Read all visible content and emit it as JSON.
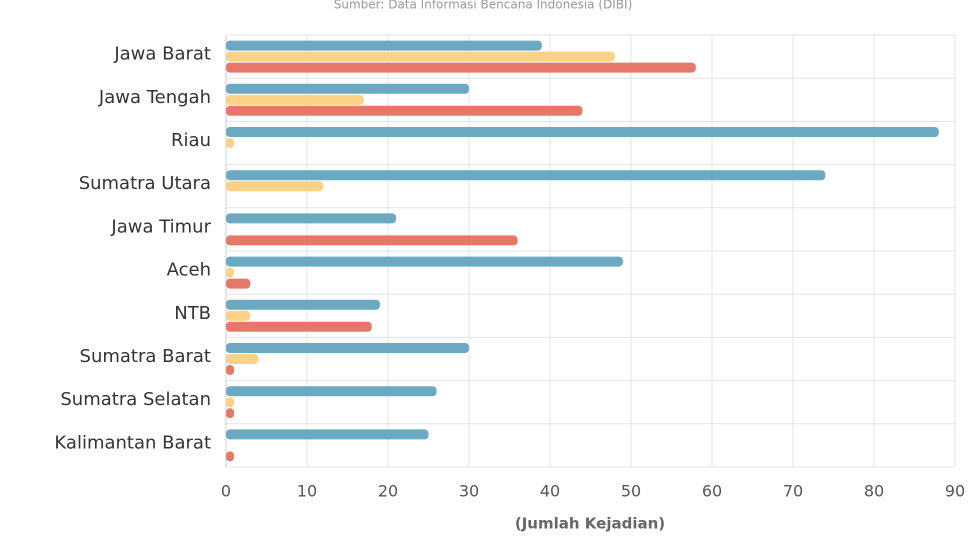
{
  "chart_data": {
    "type": "hbar",
    "subtitle": "Sumber: Data Informasi Bencana Indonesia (DIBI)",
    "x_label": "(Jumlah Kejadian)",
    "categories": [
      "Jawa Barat",
      "Jawa Tengah",
      "Riau",
      "Sumatra Utara",
      "Jawa Timur",
      "Aceh",
      "NTB",
      "Sumatra Barat",
      "Sumatra Selatan",
      "Kalimantan Barat"
    ],
    "series": [
      {
        "color": "#6aa9c1",
        "values": [
          39,
          30,
          88,
          74,
          21,
          49,
          19,
          30,
          26,
          25
        ]
      },
      {
        "color": "#fdd287",
        "values": [
          48,
          17,
          1,
          12,
          null,
          1,
          3,
          4,
          1,
          null
        ]
      },
      {
        "color": "#e6786a",
        "values": [
          58,
          44,
          null,
          null,
          36,
          3,
          18,
          1,
          1,
          1
        ]
      }
    ],
    "xlim": [
      0,
      90
    ],
    "xticks": [
      0,
      10,
      20,
      30,
      40,
      50,
      60,
      70,
      80,
      90
    ],
    "grid": true
  }
}
